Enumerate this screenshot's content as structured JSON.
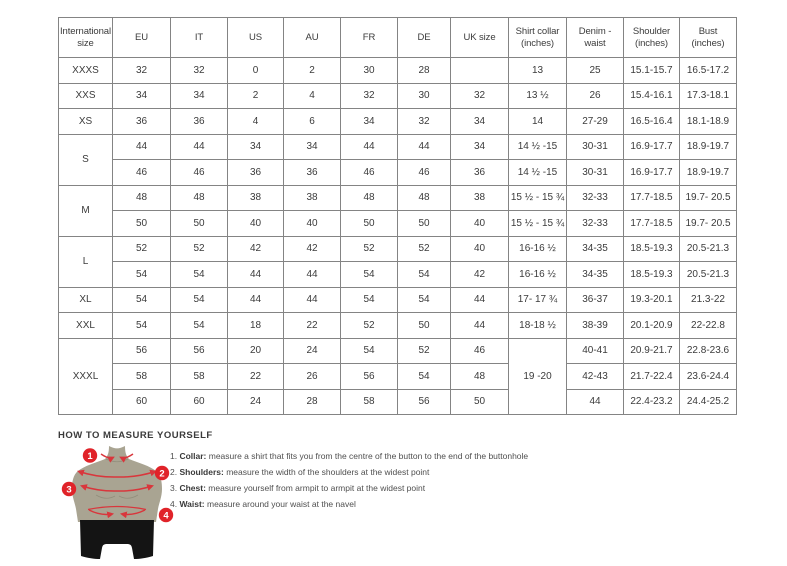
{
  "size_chart": {
    "columns": [
      "International size",
      "EU",
      "IT",
      "US",
      "AU",
      "FR",
      "DE",
      "UK size",
      "Shirt collar (inches)",
      "Denim - waist",
      "Shoulder (inches)",
      "Bust (inches)"
    ],
    "rows": [
      [
        "XXXS",
        "32",
        "32",
        "0",
        "2",
        "30",
        "28",
        "",
        "13",
        "25",
        "15.1-15.7",
        "16.5-17.2"
      ],
      [
        "XXS",
        "34",
        "34",
        "2",
        "4",
        "32",
        "30",
        "32",
        "13 ½",
        "26",
        "15.4-16.1",
        "17.3-18.1"
      ],
      [
        "XS",
        "36",
        "36",
        "4",
        "6",
        "34",
        "32",
        "34",
        "14",
        "27-29",
        "16.5-16.4",
        "18.1-18.9"
      ],
      [
        {
          "t": "S",
          "rs": 2
        },
        "44",
        "44",
        "34",
        "34",
        "44",
        "44",
        "34",
        "14 ½ -15",
        "30-31",
        "16.9-17.7",
        "18.9-19.7"
      ],
      [
        "46",
        "46",
        "36",
        "36",
        "46",
        "46",
        "36",
        "14 ½ -15",
        "30-31",
        "16.9-17.7",
        "18.9-19.7"
      ],
      [
        {
          "t": "M",
          "rs": 2
        },
        "48",
        "48",
        "38",
        "38",
        "48",
        "48",
        "38",
        "15 ½ - 15 ¾",
        "32-33",
        "17.7-18.5",
        "19.7- 20.5"
      ],
      [
        "50",
        "50",
        "40",
        "40",
        "50",
        "50",
        "40",
        "15 ½ - 15 ¾",
        "32-33",
        "17.7-18.5",
        "19.7- 20.5"
      ],
      [
        {
          "t": "L",
          "rs": 2
        },
        "52",
        "52",
        "42",
        "42",
        "52",
        "52",
        "40",
        "16-16 ½",
        "34-35",
        "18.5-19.3",
        "20.5-21.3"
      ],
      [
        "54",
        "54",
        "44",
        "44",
        "54",
        "54",
        "42",
        "16-16 ½",
        "34-35",
        "18.5-19.3",
        "20.5-21.3"
      ],
      [
        "XL",
        "54",
        "54",
        "44",
        "44",
        "54",
        "54",
        "44",
        "17- 17 ¾",
        "36-37",
        "19.3-20.1",
        "21.3-22"
      ],
      [
        "XXL",
        "54",
        "54",
        "18",
        "22",
        "52",
        "50",
        "44",
        "18-18 ½",
        "38-39",
        "20.1-20.9",
        "22-22.8"
      ],
      [
        {
          "t": "XXXL",
          "rs": 3
        },
        "56",
        "56",
        "20",
        "24",
        "54",
        "52",
        "46",
        {
          "t": "19 -20",
          "rs": 3
        },
        "40-41",
        "20.9-21.7",
        "22.8-23.6"
      ],
      [
        "58",
        "58",
        "22",
        "26",
        "56",
        "54",
        "48",
        "42-43",
        "21.7-22.4",
        "23.6-24.4"
      ],
      [
        "60",
        "60",
        "24",
        "28",
        "58",
        "56",
        "50",
        "44",
        "22.4-23.2",
        "24.4-25.2"
      ]
    ]
  },
  "measure_guide": {
    "title": "HOW TO MEASURE YOURSELF",
    "badges": [
      "1",
      "2",
      "3",
      "4"
    ],
    "steps": [
      {
        "num": "1.",
        "label": "Collar:",
        "text": "measure a shirt that fits you from the centre of the button to the end of the buttonhole"
      },
      {
        "num": "2.",
        "label": "Shoulders:",
        "text": "measure the width of the shoulders at the widest point"
      },
      {
        "num": "3.",
        "label": "Chest:",
        "text": "measure yourself from armpit to armpit at the widest point"
      },
      {
        "num": "4.",
        "label": "Waist:",
        "text": "measure around your waist at the navel"
      }
    ]
  },
  "colors": {
    "accent_red": "#e02329",
    "band_red": "#d9363c",
    "mannequin_body": "#a9a492",
    "mannequin_shade": "#928e7c",
    "mannequin_shorts": "#141414",
    "table_border": "#848484"
  }
}
